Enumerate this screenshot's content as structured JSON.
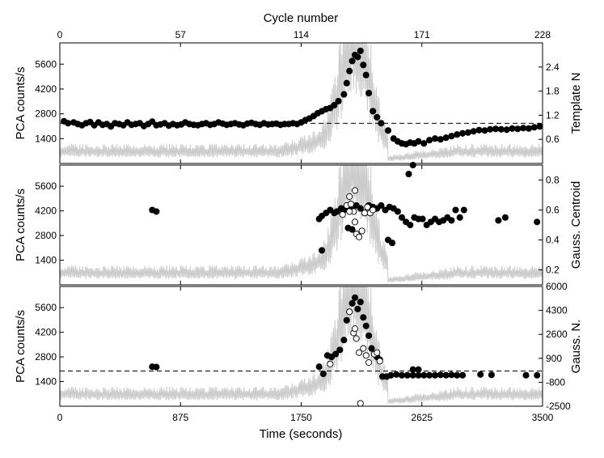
{
  "chart_data": [
    {
      "type": "scatter",
      "panel": "top",
      "x_axis": {
        "label": "Time (seconds)",
        "ticks": [
          0,
          875,
          1750,
          2625,
          3500
        ],
        "lim": [
          0,
          3500
        ]
      },
      "x_axis_top": {
        "label": "Cycle number",
        "ticks": [
          0,
          57,
          114,
          171,
          228
        ]
      },
      "y_axis_left": {
        "label": "PCA counts/s",
        "ticks": [
          1400,
          2800,
          4200,
          5600
        ],
        "lim": [
          0,
          6800
        ]
      },
      "y_axis_right": {
        "label": "Template N",
        "ticks": [
          0.6,
          1.2,
          1.8,
          2.4
        ],
        "lim": [
          0,
          3.0
        ]
      },
      "reference_line": {
        "value": 1.0,
        "style": "dashed"
      },
      "background_series": {
        "name": "",
        "color": "#cccccc"
      },
      "series": [
        {
          "marker": "filled",
          "points": [
            [
              30,
              1.05
            ],
            [
              60,
              1.0
            ],
            [
              100,
              1.02
            ],
            [
              130,
              0.98
            ],
            [
              160,
              0.95
            ],
            [
              190,
              1.0
            ],
            [
              220,
              1.03
            ],
            [
              250,
              0.95
            ],
            [
              280,
              1.02
            ],
            [
              310,
              0.96
            ],
            [
              340,
              0.98
            ],
            [
              370,
              0.92
            ],
            [
              400,
              1.0
            ],
            [
              430,
              0.98
            ],
            [
              460,
              0.95
            ],
            [
              490,
              1.02
            ],
            [
              520,
              0.96
            ],
            [
              550,
              0.98
            ],
            [
              580,
              1.0
            ],
            [
              610,
              0.93
            ],
            [
              640,
              0.98
            ],
            [
              670,
              1.04
            ],
            [
              700,
              0.95
            ],
            [
              730,
              0.97
            ],
            [
              760,
              1.0
            ],
            [
              790,
              0.94
            ],
            [
              820,
              0.98
            ],
            [
              850,
              0.95
            ],
            [
              880,
              0.97
            ],
            [
              910,
              1.02
            ],
            [
              940,
              0.98
            ],
            [
              970,
              0.96
            ],
            [
              1000,
              0.95
            ],
            [
              1030,
              0.98
            ],
            [
              1060,
              1.0
            ],
            [
              1090,
              0.96
            ],
            [
              1120,
              0.98
            ],
            [
              1150,
              1.02
            ],
            [
              1180,
              0.99
            ],
            [
              1210,
              0.96
            ],
            [
              1240,
              0.98
            ],
            [
              1270,
              1.0
            ],
            [
              1300,
              0.97
            ],
            [
              1330,
              0.95
            ],
            [
              1360,
              0.99
            ],
            [
              1390,
              1.01
            ],
            [
              1420,
              0.98
            ],
            [
              1450,
              0.96
            ],
            [
              1480,
              1.0
            ],
            [
              1510,
              0.97
            ],
            [
              1540,
              0.98
            ],
            [
              1570,
              0.99
            ],
            [
              1600,
              0.96
            ],
            [
              1630,
              0.98
            ],
            [
              1660,
              0.98
            ],
            [
              1690,
              1.0
            ],
            [
              1720,
              0.98
            ],
            [
              1750,
              1.02
            ],
            [
              1780,
              1.08
            ],
            [
              1810,
              1.12
            ],
            [
              1840,
              1.18
            ],
            [
              1870,
              1.25
            ],
            [
              1900,
              1.3
            ],
            [
              1930,
              1.35
            ],
            [
              1960,
              1.38
            ],
            [
              1990,
              1.45
            ],
            [
              2020,
              1.55
            ],
            [
              2060,
              1.72
            ],
            [
              2080,
              2.0
            ],
            [
              2100,
              2.3
            ],
            [
              2120,
              2.55
            ],
            [
              2140,
              2.7
            ],
            [
              2160,
              2.65
            ],
            [
              2180,
              2.8
            ],
            [
              2200,
              2.45
            ],
            [
              2220,
              2.2
            ],
            [
              2240,
              1.75
            ],
            [
              2270,
              1.3
            ],
            [
              2300,
              1.15
            ],
            [
              2330,
              1.0
            ],
            [
              2380,
              0.82
            ],
            [
              2420,
              0.62
            ],
            [
              2450,
              0.55
            ],
            [
              2480,
              0.5
            ],
            [
              2510,
              0.48
            ],
            [
              2540,
              0.52
            ],
            [
              2570,
              0.5
            ],
            [
              2600,
              0.55
            ],
            [
              2640,
              0.5
            ],
            [
              2680,
              0.58
            ],
            [
              2720,
              0.62
            ],
            [
              2760,
              0.6
            ],
            [
              2800,
              0.64
            ],
            [
              2840,
              0.68
            ],
            [
              2880,
              0.72
            ],
            [
              2920,
              0.75
            ],
            [
              2960,
              0.77
            ],
            [
              3000,
              0.8
            ],
            [
              3040,
              0.83
            ],
            [
              3080,
              0.82
            ],
            [
              3120,
              0.85
            ],
            [
              3160,
              0.86
            ],
            [
              3200,
              0.85
            ],
            [
              3240,
              0.84
            ],
            [
              3280,
              0.87
            ],
            [
              3320,
              0.86
            ],
            [
              3360,
              0.88
            ],
            [
              3400,
              0.87
            ],
            [
              3440,
              0.9
            ],
            [
              3480,
              0.92
            ]
          ]
        }
      ]
    },
    {
      "type": "scatter",
      "panel": "middle",
      "x_axis": {
        "label": "Time (seconds)",
        "ticks": [
          0,
          875,
          1750,
          2625,
          3500
        ],
        "lim": [
          0,
          3500
        ]
      },
      "y_axis_left": {
        "label": "PCA counts/s",
        "ticks": [
          1400,
          2800,
          4200,
          5600
        ],
        "lim": [
          0,
          6800
        ]
      },
      "y_axis_right": {
        "label": "Gauss. Centroid",
        "ticks": [
          0.2,
          0.4,
          0.6,
          0.8
        ],
        "lim": [
          0.1,
          0.9
        ]
      },
      "background_series": {
        "name": "",
        "color": "#cccccc"
      },
      "series": [
        {
          "marker": "filled",
          "points": [
            [
              670,
              0.6
            ],
            [
              700,
              0.59
            ],
            [
              1880,
              0.54
            ],
            [
              1900,
              0.56
            ],
            [
              1930,
              0.58
            ],
            [
              1960,
              0.6
            ],
            [
              1990,
              0.58
            ],
            [
              2010,
              0.59
            ],
            [
              2040,
              0.61
            ],
            [
              2060,
              0.6
            ],
            [
              2090,
              0.62
            ],
            [
              2120,
              0.6
            ],
            [
              2150,
              0.63
            ],
            [
              2180,
              0.61
            ],
            [
              2210,
              0.58
            ],
            [
              2240,
              0.63
            ],
            [
              2270,
              0.62
            ],
            [
              2300,
              0.61
            ],
            [
              2330,
              0.63
            ],
            [
              2360,
              0.6
            ],
            [
              2390,
              0.62
            ],
            [
              2420,
              0.61
            ],
            [
              2450,
              0.59
            ],
            [
              2480,
              0.55
            ],
            [
              2510,
              0.52
            ],
            [
              2540,
              0.5
            ],
            [
              2570,
              0.55
            ],
            [
              2600,
              0.54
            ],
            [
              2630,
              0.54
            ],
            [
              2660,
              0.5
            ],
            [
              2690,
              0.52
            ],
            [
              2720,
              0.54
            ],
            [
              2750,
              0.52
            ],
            [
              2780,
              0.53
            ],
            [
              2810,
              0.55
            ],
            [
              2840,
              0.53
            ],
            [
              2870,
              0.6
            ],
            [
              2900,
              0.55
            ],
            [
              2930,
              0.6
            ],
            [
              3180,
              0.53
            ],
            [
              3230,
              0.55
            ],
            [
              3460,
              0.52
            ],
            [
              2380,
              0.4
            ],
            [
              2410,
              0.38
            ],
            [
              1900,
              0.33
            ],
            [
              2530,
              0.84
            ],
            [
              2560,
              0.9
            ],
            [
              2090,
              0.48
            ],
            [
              2120,
              0.47
            ]
          ]
        },
        {
          "marker": "open",
          "points": [
            [
              2050,
              0.57
            ],
            [
              2080,
              0.63
            ],
            [
              2110,
              0.64
            ],
            [
              2130,
              0.59
            ],
            [
              2140,
              0.52
            ],
            [
              2150,
              0.44
            ],
            [
              2170,
              0.42
            ],
            [
              2190,
              0.46
            ],
            [
              2210,
              0.58
            ],
            [
              2230,
              0.62
            ],
            [
              2100,
              0.69
            ],
            [
              2140,
              0.73
            ],
            [
              2250,
              0.58
            ],
            [
              2270,
              0.6
            ],
            [
              2100,
              0.59
            ]
          ]
        }
      ]
    },
    {
      "type": "scatter",
      "panel": "bottom",
      "x_axis": {
        "label": "Time (seconds)",
        "ticks": [
          0,
          875,
          1750,
          2625,
          3500
        ],
        "lim": [
          0,
          3500
        ]
      },
      "y_axis_left": {
        "label": "PCA counts/s",
        "ticks": [
          1400,
          2800,
          4200,
          5600
        ],
        "lim": [
          0,
          6800
        ]
      },
      "y_axis_right": {
        "label": "Gauss. N.",
        "ticks": [
          -2500,
          -800,
          900,
          2600,
          4300,
          6000
        ],
        "lim": [
          -2500,
          6000
        ]
      },
      "reference_line": {
        "value": 0,
        "style": "dashed"
      },
      "background_series": {
        "name": "",
        "color": "#cccccc"
      },
      "series": [
        {
          "marker": "filled",
          "points": [
            [
              670,
              300
            ],
            [
              700,
              280
            ],
            [
              1880,
              300
            ],
            [
              1910,
              -200
            ],
            [
              1940,
              1100
            ],
            [
              1970,
              1000
            ],
            [
              2000,
              1200
            ],
            [
              2030,
              1500
            ],
            [
              2060,
              2200
            ],
            [
              2080,
              3600
            ],
            [
              2100,
              4200
            ],
            [
              2120,
              4800
            ],
            [
              2140,
              5200
            ],
            [
              2160,
              4400
            ],
            [
              2180,
              4900
            ],
            [
              2200,
              3800
            ],
            [
              2220,
              3200
            ],
            [
              2240,
              2500
            ],
            [
              2260,
              1600
            ],
            [
              2280,
              1200
            ],
            [
              2300,
              1000
            ],
            [
              2320,
              800
            ],
            [
              2340,
              -400
            ],
            [
              2370,
              -400
            ],
            [
              2400,
              -300
            ],
            [
              2440,
              -250
            ],
            [
              2480,
              -300
            ],
            [
              2520,
              -300
            ],
            [
              2560,
              -300
            ],
            [
              2600,
              -300
            ],
            [
              2640,
              -300
            ],
            [
              2680,
              -300
            ],
            [
              2720,
              -300
            ],
            [
              2760,
              -280
            ],
            [
              2800,
              -300
            ],
            [
              2840,
              -280
            ],
            [
              2560,
              100
            ],
            [
              2600,
              100
            ],
            [
              2880,
              -300
            ],
            [
              2920,
              -300
            ],
            [
              3050,
              -250
            ],
            [
              3130,
              -280
            ],
            [
              3380,
              -300
            ],
            [
              3460,
              -300
            ]
          ]
        },
        {
          "marker": "open",
          "points": [
            [
              1960,
              500
            ],
            [
              2100,
              4200
            ],
            [
              2130,
              2700
            ],
            [
              2140,
              3000
            ],
            [
              2150,
              2300
            ],
            [
              2170,
              1300
            ],
            [
              2200,
              1600
            ],
            [
              2220,
              1100
            ],
            [
              2240,
              600
            ],
            [
              2280,
              1200
            ],
            [
              2300,
              1300
            ],
            [
              2320,
              700
            ],
            [
              2180,
              -2300
            ]
          ]
        }
      ]
    }
  ]
}
